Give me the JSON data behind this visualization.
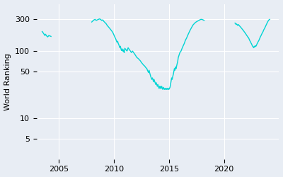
{
  "ylabel": "World Ranking",
  "line_color": "#00D4D4",
  "bg_color": "#E8EDF4",
  "line_width": 1.0,
  "yticks": [
    5,
    10,
    50,
    100,
    300
  ],
  "xlim_start": 2003.0,
  "xlim_end": 2025.0,
  "ylim_bottom": 2.5,
  "ylim_top": 500,
  "xticks": [
    2005,
    2010,
    2015,
    2020
  ],
  "segments": [
    [
      [
        2003.5,
        195
      ],
      [
        2003.6,
        185
      ],
      [
        2003.7,
        175
      ],
      [
        2003.75,
        170
      ],
      [
        2003.8,
        178
      ],
      [
        2003.9,
        168
      ],
      [
        2004.0,
        162
      ],
      [
        2004.1,
        170
      ],
      [
        2004.3,
        165
      ]
    ],
    [
      [
        2008.0,
        270
      ],
      [
        2008.1,
        280
      ],
      [
        2008.2,
        290
      ],
      [
        2008.3,
        295
      ],
      [
        2008.4,
        285
      ],
      [
        2008.5,
        290
      ],
      [
        2008.6,
        295
      ],
      [
        2008.7,
        300
      ],
      [
        2008.8,
        295
      ],
      [
        2008.9,
        285
      ],
      [
        2009.0,
        290
      ],
      [
        2009.1,
        275
      ],
      [
        2009.2,
        265
      ],
      [
        2009.3,
        255
      ],
      [
        2009.4,
        240
      ],
      [
        2009.5,
        230
      ],
      [
        2009.6,
        220
      ],
      [
        2009.7,
        210
      ],
      [
        2009.8,
        200
      ],
      [
        2009.9,
        190
      ],
      [
        2010.0,
        175
      ],
      [
        2010.1,
        160
      ],
      [
        2010.15,
        155
      ],
      [
        2010.2,
        148
      ],
      [
        2010.25,
        140
      ],
      [
        2010.3,
        135
      ],
      [
        2010.35,
        140
      ],
      [
        2010.4,
        130
      ],
      [
        2010.45,
        125
      ],
      [
        2010.5,
        118
      ],
      [
        2010.55,
        112
      ],
      [
        2010.6,
        118
      ],
      [
        2010.65,
        108
      ],
      [
        2010.7,
        102
      ],
      [
        2010.75,
        108
      ],
      [
        2010.8,
        100
      ],
      [
        2010.85,
        105
      ],
      [
        2010.9,
        98
      ],
      [
        2010.95,
        95
      ],
      [
        2011.0,
        110
      ],
      [
        2011.1,
        105
      ],
      [
        2011.2,
        100
      ],
      [
        2011.3,
        112
      ],
      [
        2011.4,
        106
      ],
      [
        2011.5,
        100
      ],
      [
        2011.6,
        95
      ],
      [
        2011.7,
        100
      ],
      [
        2011.8,
        95
      ],
      [
        2011.9,
        90
      ],
      [
        2012.0,
        85
      ],
      [
        2012.1,
        80
      ],
      [
        2012.2,
        78
      ],
      [
        2012.3,
        75
      ],
      [
        2012.4,
        72
      ],
      [
        2012.5,
        68
      ],
      [
        2012.6,
        65
      ],
      [
        2012.7,
        62
      ],
      [
        2012.8,
        60
      ],
      [
        2012.9,
        57
      ],
      [
        2013.0,
        55
      ],
      [
        2013.05,
        52
      ],
      [
        2013.1,
        50
      ],
      [
        2013.15,
        48
      ],
      [
        2013.2,
        52
      ],
      [
        2013.25,
        48
      ],
      [
        2013.3,
        45
      ],
      [
        2013.35,
        42
      ],
      [
        2013.4,
        40
      ],
      [
        2013.45,
        38
      ],
      [
        2013.5,
        40
      ],
      [
        2013.55,
        38
      ],
      [
        2013.6,
        35
      ],
      [
        2013.65,
        38
      ],
      [
        2013.7,
        36
      ],
      [
        2013.75,
        34
      ],
      [
        2013.8,
        32
      ],
      [
        2013.85,
        34
      ],
      [
        2013.9,
        32
      ],
      [
        2013.95,
        30
      ],
      [
        2014.0,
        32
      ],
      [
        2014.05,
        30
      ],
      [
        2014.1,
        28
      ],
      [
        2014.15,
        30
      ],
      [
        2014.2,
        28
      ],
      [
        2014.25,
        30
      ],
      [
        2014.3,
        28
      ],
      [
        2014.35,
        30
      ],
      [
        2014.4,
        28
      ],
      [
        2014.45,
        27
      ],
      [
        2014.5,
        29
      ],
      [
        2014.55,
        28
      ],
      [
        2014.6,
        27
      ],
      [
        2014.65,
        28
      ],
      [
        2014.7,
        27
      ],
      [
        2014.75,
        28
      ],
      [
        2014.8,
        27
      ],
      [
        2014.85,
        28
      ],
      [
        2014.9,
        27
      ],
      [
        2014.95,
        28
      ],
      [
        2015.0,
        27
      ],
      [
        2015.05,
        28
      ],
      [
        2015.1,
        29
      ],
      [
        2015.15,
        32
      ],
      [
        2015.2,
        36
      ],
      [
        2015.25,
        40
      ],
      [
        2015.3,
        38
      ],
      [
        2015.35,
        42
      ],
      [
        2015.4,
        45
      ],
      [
        2015.45,
        50
      ],
      [
        2015.5,
        55
      ],
      [
        2015.55,
        52
      ],
      [
        2015.6,
        58
      ],
      [
        2015.65,
        55
      ],
      [
        2015.7,
        60
      ],
      [
        2015.75,
        65
      ],
      [
        2015.8,
        70
      ],
      [
        2015.85,
        80
      ],
      [
        2015.9,
        85
      ],
      [
        2015.95,
        90
      ],
      [
        2016.0,
        95
      ],
      [
        2016.1,
        100
      ],
      [
        2016.2,
        110
      ],
      [
        2016.3,
        120
      ],
      [
        2016.4,
        130
      ],
      [
        2016.5,
        145
      ],
      [
        2016.6,
        155
      ],
      [
        2016.7,
        170
      ],
      [
        2016.8,
        185
      ],
      [
        2016.9,
        200
      ],
      [
        2017.0,
        215
      ],
      [
        2017.1,
        230
      ],
      [
        2017.2,
        245
      ],
      [
        2017.3,
        255
      ],
      [
        2017.4,
        265
      ],
      [
        2017.5,
        272
      ],
      [
        2017.6,
        278
      ],
      [
        2017.7,
        283
      ],
      [
        2017.8,
        290
      ],
      [
        2017.9,
        295
      ],
      [
        2018.0,
        295
      ],
      [
        2018.1,
        290
      ],
      [
        2018.2,
        285
      ]
    ],
    [
      [
        2021.0,
        260
      ],
      [
        2021.05,
        255
      ],
      [
        2021.1,
        248
      ],
      [
        2021.15,
        252
      ],
      [
        2021.2,
        245
      ],
      [
        2021.25,
        240
      ],
      [
        2021.3,
        248
      ],
      [
        2021.35,
        242
      ],
      [
        2021.4,
        238
      ],
      [
        2021.45,
        232
      ],
      [
        2021.5,
        228
      ],
      [
        2021.55,
        222
      ],
      [
        2021.6,
        218
      ],
      [
        2021.65,
        212
      ],
      [
        2021.7,
        208
      ],
      [
        2021.75,
        202
      ],
      [
        2021.8,
        198
      ],
      [
        2021.85,
        192
      ],
      [
        2021.9,
        188
      ],
      [
        2021.95,
        182
      ],
      [
        2022.0,
        178
      ],
      [
        2022.05,
        172
      ],
      [
        2022.1,
        168
      ],
      [
        2022.15,
        162
      ],
      [
        2022.2,
        160
      ],
      [
        2022.25,
        155
      ],
      [
        2022.3,
        148
      ],
      [
        2022.35,
        142
      ],
      [
        2022.4,
        138
      ],
      [
        2022.45,
        132
      ],
      [
        2022.5,
        128
      ],
      [
        2022.55,
        122
      ],
      [
        2022.6,
        118
      ],
      [
        2022.65,
        115
      ],
      [
        2022.7,
        112
      ],
      [
        2022.75,
        118
      ],
      [
        2022.8,
        115
      ],
      [
        2022.85,
        120
      ],
      [
        2022.9,
        118
      ],
      [
        2022.95,
        122
      ],
      [
        2023.0,
        128
      ],
      [
        2023.05,
        132
      ],
      [
        2023.1,
        138
      ],
      [
        2023.15,
        142
      ],
      [
        2023.2,
        148
      ],
      [
        2023.25,
        155
      ],
      [
        2023.3,
        162
      ],
      [
        2023.35,
        168
      ],
      [
        2023.4,
        175
      ],
      [
        2023.45,
        182
      ],
      [
        2023.5,
        188
      ],
      [
        2023.55,
        195
      ],
      [
        2023.6,
        205
      ],
      [
        2023.65,
        212
      ],
      [
        2023.7,
        220
      ],
      [
        2023.75,
        228
      ],
      [
        2023.8,
        238
      ],
      [
        2023.85,
        248
      ],
      [
        2023.9,
        258
      ],
      [
        2023.95,
        268
      ],
      [
        2024.0,
        278
      ],
      [
        2024.05,
        285
      ],
      [
        2024.1,
        292
      ],
      [
        2024.15,
        295
      ]
    ]
  ]
}
